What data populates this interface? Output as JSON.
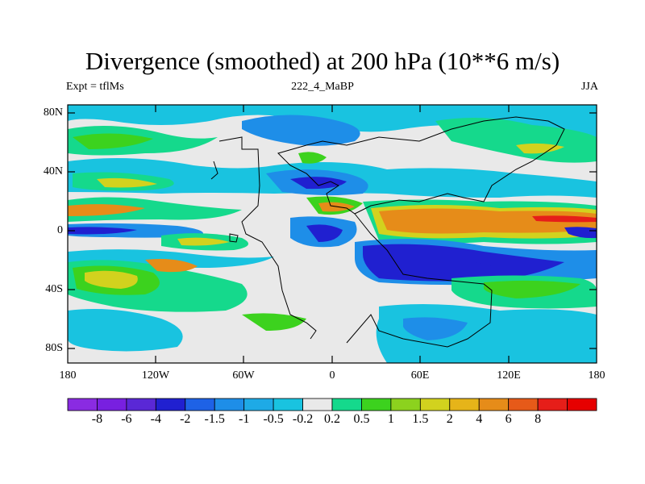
{
  "title": "Divergence (smoothed) at 200 hPa (10**6 m/s)",
  "subtitle_left": "Expt = tflMs",
  "subtitle_center": "222_4_MaBP",
  "subtitle_right": "JJA",
  "lat_labels": [
    "80N",
    "40N",
    "0",
    "40S",
    "80S"
  ],
  "lon_labels": [
    "180",
    "120W",
    "60W",
    "0",
    "60E",
    "120E",
    "180"
  ],
  "colorbar": {
    "colors": [
      "#8a2be2",
      "#7820e0",
      "#5a28d6",
      "#2020d0",
      "#1e62e6",
      "#1e8ee8",
      "#1eaae6",
      "#19c3e0",
      "#e9e9e9",
      "#15d98c",
      "#3cd21e",
      "#8cd21e",
      "#d2d21e",
      "#e6b419",
      "#e68c19",
      "#e65a19",
      "#e61e19",
      "#e60000"
    ],
    "labels": [
      "-8",
      "-6",
      "-4",
      "-2",
      "-1.5",
      "-1",
      "-0.5",
      "-0.2",
      "0.2",
      "0.5",
      "1",
      "1.5",
      "2",
      "4",
      "6",
      "8"
    ]
  },
  "field_colors": {
    "strong_conv": "#2020d0",
    "mod_conv": "#1e8ee8",
    "weak_conv": "#19c3e0",
    "neutral": "#e9e9e9",
    "weak_div": "#15d98c",
    "mod_div": "#3cd21e",
    "div_yellow": "#d2d21e",
    "div_orange": "#e68c19",
    "div_red": "#e61e19"
  }
}
